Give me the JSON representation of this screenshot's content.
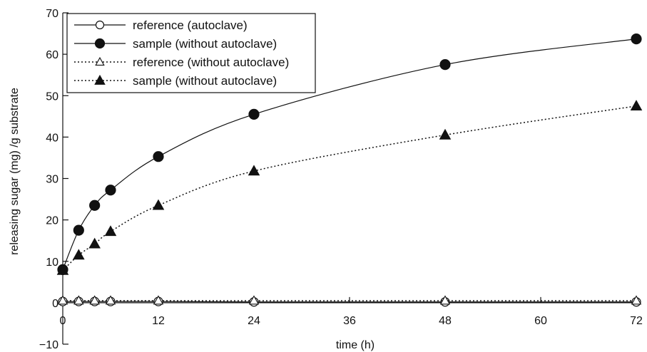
{
  "chart_data": {
    "type": "line",
    "title": "",
    "xlabel": "time (h)",
    "ylabel": "releasing sugar (mg) /g substrate",
    "xlim": [
      0,
      72
    ],
    "ylim": [
      -10,
      70
    ],
    "xticks": [
      0,
      12,
      24,
      36,
      48,
      60,
      72
    ],
    "yticks": [
      -10,
      0,
      10,
      20,
      30,
      40,
      50,
      60,
      70
    ],
    "legend_position": "top-left",
    "grid": false,
    "x": [
      0,
      2,
      4,
      6,
      12,
      24,
      48,
      72
    ],
    "series": [
      {
        "name": "reference (autoclave)",
        "marker": "open-circle",
        "line": "solid",
        "values": [
          0.3,
          0.3,
          0.3,
          0.3,
          0.3,
          0.2,
          0.2,
          0.2
        ]
      },
      {
        "name": "sample (without autoclave)",
        "marker": "filled-circle",
        "line": "solid",
        "values": [
          8,
          17.5,
          23.5,
          27.2,
          35.3,
          45.5,
          57.5,
          63.7
        ]
      },
      {
        "name": "reference (without autoclave)",
        "marker": "open-triangle",
        "line": "dotted",
        "values": [
          0.5,
          0.5,
          0.5,
          0.5,
          0.5,
          0.5,
          0.5,
          0.5
        ]
      },
      {
        "name": "sample (without autoclave)",
        "marker": "filled-triangle",
        "line": "dotted",
        "values": [
          7.8,
          11.5,
          14.2,
          17.2,
          23.5,
          31.8,
          40.5,
          47.5
        ]
      }
    ]
  }
}
